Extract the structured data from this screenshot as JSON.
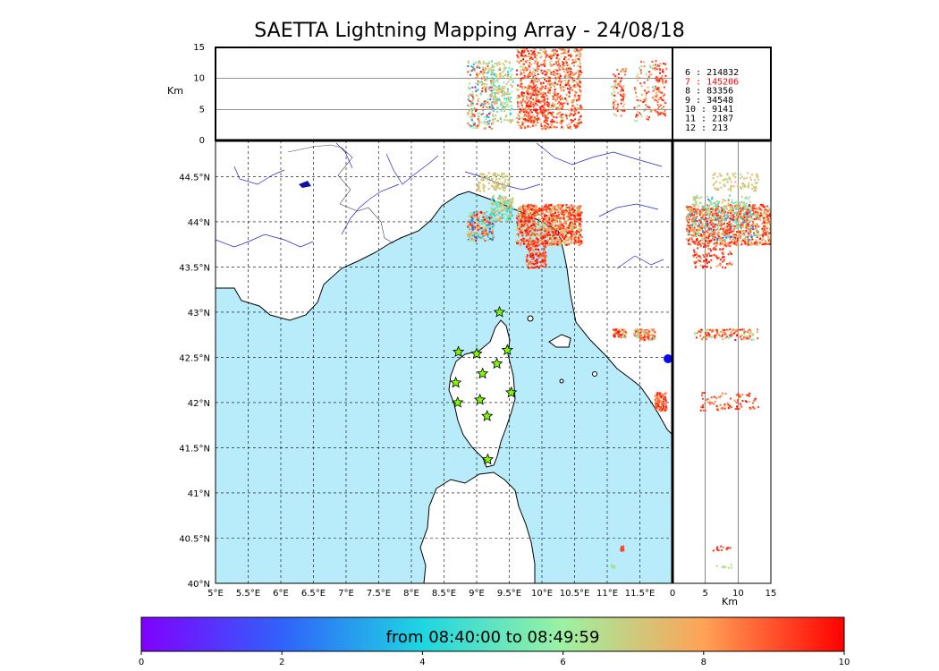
{
  "title": "SAETTA Lightning Mapping Array - 24/08/18",
  "chart_data": {
    "type": "scatter",
    "title": "SAETTA Lightning Mapping Array - 24/08/18",
    "map": {
      "lon_range": [
        5,
        12.0
      ],
      "lat_range": [
        40,
        44.9
      ],
      "lon_ticks": [
        "5°E",
        "5.5°E",
        "6°E",
        "6.5°E",
        "7°E",
        "7.5°E",
        "8°E",
        "8.5°E",
        "9°E",
        "9.5°E",
        "10°E",
        "10.5°E",
        "11°E",
        "11.5°E"
      ],
      "lat_ticks": [
        "40°N",
        "40.5°N",
        "41°N",
        "41.5°N",
        "42°N",
        "42.5°N",
        "43°N",
        "43.5°N",
        "44°N",
        "44.5°N"
      ],
      "grid": true,
      "sea_color": "#b8ecfa",
      "stations": [
        {
          "lon": 9.35,
          "lat": 43.0
        },
        {
          "lon": 8.72,
          "lat": 42.56
        },
        {
          "lon": 9.0,
          "lat": 42.54
        },
        {
          "lon": 9.47,
          "lat": 42.58
        },
        {
          "lon": 9.31,
          "lat": 42.43
        },
        {
          "lon": 9.09,
          "lat": 42.32
        },
        {
          "lon": 8.68,
          "lat": 42.22
        },
        {
          "lon": 9.53,
          "lat": 42.11
        },
        {
          "lon": 9.05,
          "lat": 42.03
        },
        {
          "lon": 8.71,
          "lat": 42.0
        },
        {
          "lon": 9.16,
          "lat": 41.85
        },
        {
          "lon": 9.17,
          "lat": 41.37
        }
      ]
    },
    "altitude_panel": {
      "ylabel": "Km",
      "y_range": [
        0,
        15
      ],
      "y_ticks": [
        "0",
        "5",
        "10",
        "15"
      ]
    },
    "side_panel": {
      "xlabel": "Km",
      "x_range": [
        0,
        15
      ],
      "x_ticks": [
        "0",
        "5",
        "10",
        "15"
      ]
    },
    "counts": [
      {
        "label": "6  :   214832",
        "color": "#000000"
      },
      {
        "label": "7  :   145206",
        "color": "#ff0000"
      },
      {
        "label": "8  :    83356",
        "color": "#000000"
      },
      {
        "label": "9  :    34548",
        "color": "#000000"
      },
      {
        "label": "10 :     9141",
        "color": "#000000"
      },
      {
        "label": "11 :     2187",
        "color": "#000000"
      },
      {
        "label": "12 :      213",
        "color": "#000000"
      }
    ],
    "colorbar": {
      "label": "from 08:40:00 to 08:49:59",
      "range": [
        0,
        10
      ],
      "ticks": [
        "0",
        "2",
        "4",
        "6",
        "8",
        "10"
      ],
      "colormap": "rainbow"
    },
    "clusters": [
      {
        "lon_range": [
          9.6,
          10.6
        ],
        "lat_range": [
          43.75,
          44.2
        ],
        "alt_range": [
          2,
          15
        ],
        "time_range": [
          5.5,
          10
        ],
        "density": 900
      },
      {
        "lon_range": [
          8.85,
          9.25
        ],
        "lat_range": [
          43.8,
          44.12
        ],
        "alt_range": [
          2,
          13
        ],
        "time_range": [
          0,
          10
        ],
        "density": 220
      },
      {
        "lon_range": [
          9.2,
          9.55
        ],
        "lat_range": [
          44.02,
          44.3
        ],
        "alt_range": [
          3,
          12
        ],
        "time_range": [
          2,
          8
        ],
        "density": 160
      },
      {
        "lon_range": [
          9.0,
          9.5
        ],
        "lat_range": [
          44.35,
          44.55
        ],
        "alt_range": [
          6,
          13
        ],
        "time_range": [
          6.3,
          7.5
        ],
        "density": 90
      },
      {
        "lon_range": [
          9.75,
          10.05
        ],
        "lat_range": [
          43.5,
          43.78
        ],
        "alt_range": [
          3,
          9
        ],
        "time_range": [
          7,
          10
        ],
        "density": 120
      },
      {
        "lon_range": [
          11.08,
          11.28
        ],
        "lat_range": [
          42.73,
          42.82
        ],
        "alt_range": [
          4,
          12
        ],
        "time_range": [
          6,
          10
        ],
        "density": 60
      },
      {
        "lon_range": [
          11.4,
          11.72
        ],
        "lat_range": [
          42.7,
          42.82
        ],
        "alt_range": [
          3,
          13
        ],
        "time_range": [
          4,
          10
        ],
        "density": 80
      },
      {
        "lon_range": [
          11.72,
          11.9
        ],
        "lat_range": [
          41.92,
          42.12
        ],
        "alt_range": [
          4,
          13
        ],
        "time_range": [
          7,
          10
        ],
        "density": 90
      },
      {
        "lon_range": [
          11.18,
          11.24
        ],
        "lat_range": [
          40.37,
          40.42
        ],
        "alt_range": [
          6,
          9
        ],
        "time_range": [
          8,
          10
        ],
        "density": 15
      },
      {
        "lon_range": [
          11.05,
          11.1
        ],
        "lat_range": [
          40.18,
          40.22
        ],
        "alt_range": [
          6,
          9
        ],
        "time_range": [
          5,
          7
        ],
        "density": 8
      }
    ]
  }
}
